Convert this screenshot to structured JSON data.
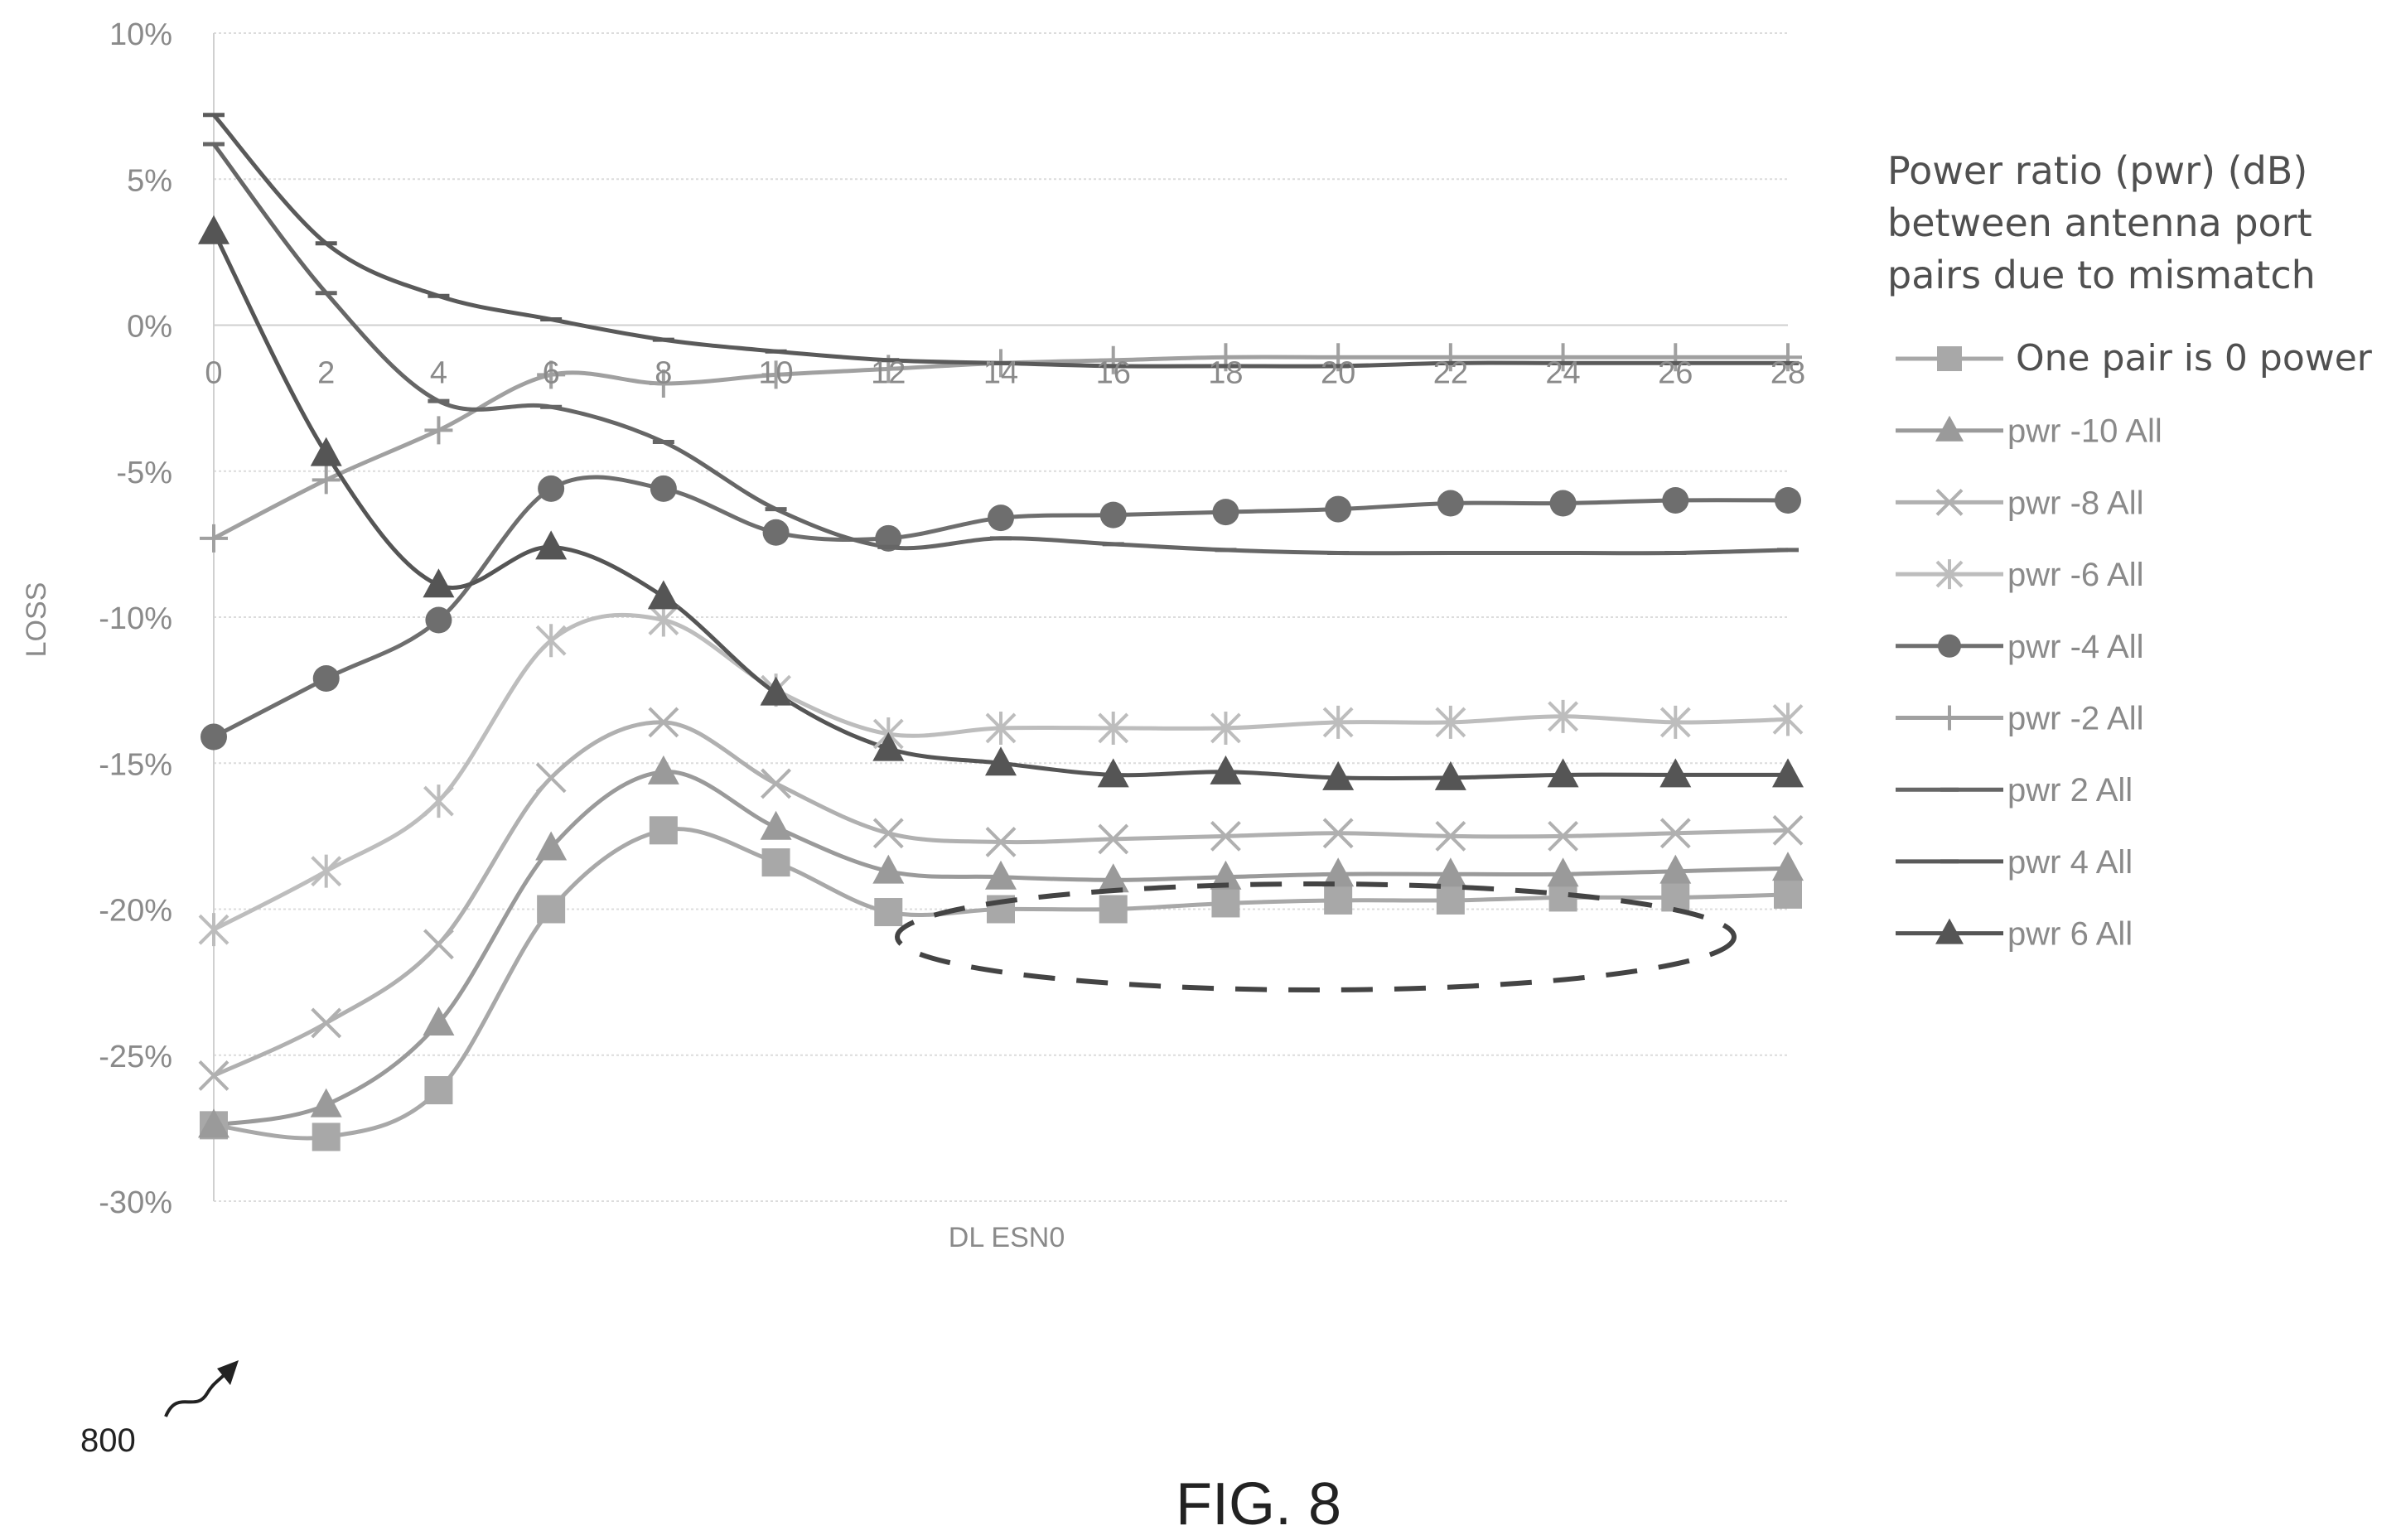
{
  "figure": {
    "label": "FIG. 8",
    "ref_number": "800"
  },
  "chart_data": {
    "type": "line",
    "title": "",
    "xlabel": "DL ESN0",
    "ylabel": "LOSS",
    "x": [
      0,
      2,
      4,
      6,
      8,
      10,
      12,
      14,
      16,
      18,
      20,
      22,
      24,
      26,
      28
    ],
    "x_tick_labels": [
      "0",
      "2",
      "4",
      "6",
      "8",
      "10",
      "12",
      "14",
      "16",
      "18",
      "20",
      "22",
      "24",
      "26",
      "28"
    ],
    "xlim": [
      0,
      28
    ],
    "ylim": [
      -30,
      10
    ],
    "y_ticks": [
      10,
      5,
      0,
      -5,
      -10,
      -15,
      -20,
      -25,
      -30
    ],
    "y_tick_labels": [
      "10%",
      "5%",
      "0%",
      "-5%",
      "-10%",
      "-15%",
      "-20%",
      "-25%",
      "-30%"
    ],
    "grid": "horizontal",
    "legend_placement": "right",
    "legend_title_lines": [
      "Power ratio (pwr) (dB)",
      "between antenna port",
      "pairs due to mismatch"
    ],
    "series": [
      {
        "name": "One pair is 0 power",
        "marker": "square",
        "color": "#a8a8a8",
        "values": [
          -27.4,
          -27.8,
          -26.2,
          -20.0,
          -17.3,
          -18.4,
          -20.1,
          -20.0,
          -20.0,
          -19.8,
          -19.7,
          -19.7,
          -19.6,
          -19.6,
          -19.5
        ]
      },
      {
        "name": "pwr -10 All",
        "marker": "triangle",
        "color": "#9a9a9a",
        "values": [
          -27.4,
          -26.7,
          -23.9,
          -17.9,
          -15.3,
          -17.2,
          -18.7,
          -18.9,
          -19.0,
          -18.9,
          -18.8,
          -18.8,
          -18.8,
          -18.7,
          -18.6
        ]
      },
      {
        "name": "pwr -8 All",
        "marker": "x",
        "color": "#b0b0b0",
        "values": [
          -25.7,
          -23.9,
          -21.2,
          -15.5,
          -13.6,
          -15.7,
          -17.4,
          -17.7,
          -17.6,
          -17.5,
          -17.4,
          -17.5,
          -17.5,
          -17.4,
          -17.3
        ]
      },
      {
        "name": "pwr -6 All",
        "marker": "asterisk",
        "color": "#bdbdbd",
        "values": [
          -20.7,
          -18.7,
          -16.3,
          -10.8,
          -10.1,
          -12.5,
          -14.0,
          -13.8,
          -13.8,
          -13.8,
          -13.6,
          -13.6,
          -13.4,
          -13.6,
          -13.5
        ]
      },
      {
        "name": "pwr -4 All",
        "marker": "circle",
        "color": "#6e6e6e",
        "values": [
          -14.1,
          -12.1,
          -10.1,
          -5.6,
          -5.6,
          -7.1,
          -7.3,
          -6.6,
          -6.5,
          -6.4,
          -6.3,
          -6.1,
          -6.1,
          -6.0,
          -6.0
        ]
      },
      {
        "name": "pwr -2 All",
        "marker": "plus",
        "color": "#a0a0a0",
        "values": [
          -7.3,
          -5.3,
          -3.6,
          -1.7,
          -2.0,
          -1.7,
          -1.5,
          -1.3,
          -1.2,
          -1.1,
          -1.1,
          -1.1,
          -1.1,
          -1.1,
          -1.1
        ]
      },
      {
        "name": "pwr 2 All",
        "marker": "dash",
        "color": "#666666",
        "values": [
          6.2,
          1.1,
          -2.6,
          -2.8,
          -4.0,
          -6.3,
          -7.6,
          -7.3,
          -7.5,
          -7.7,
          -7.8,
          -7.8,
          -7.8,
          -7.8,
          -7.7
        ]
      },
      {
        "name": "pwr 4 All",
        "marker": "dash",
        "color": "#5a5a5a",
        "values": [
          7.2,
          2.8,
          1.0,
          0.2,
          -0.5,
          -0.9,
          -1.2,
          -1.3,
          -1.4,
          -1.4,
          -1.4,
          -1.3,
          -1.3,
          -1.3,
          -1.3
        ]
      },
      {
        "name": "pwr 6 All",
        "marker": "triangle",
        "color": "#555555",
        "values": [
          3.2,
          -4.4,
          -8.9,
          -7.6,
          -9.3,
          -12.6,
          -14.5,
          -15.0,
          -15.4,
          -15.3,
          -15.5,
          -15.5,
          -15.4,
          -15.4,
          -15.4
        ]
      }
    ]
  }
}
